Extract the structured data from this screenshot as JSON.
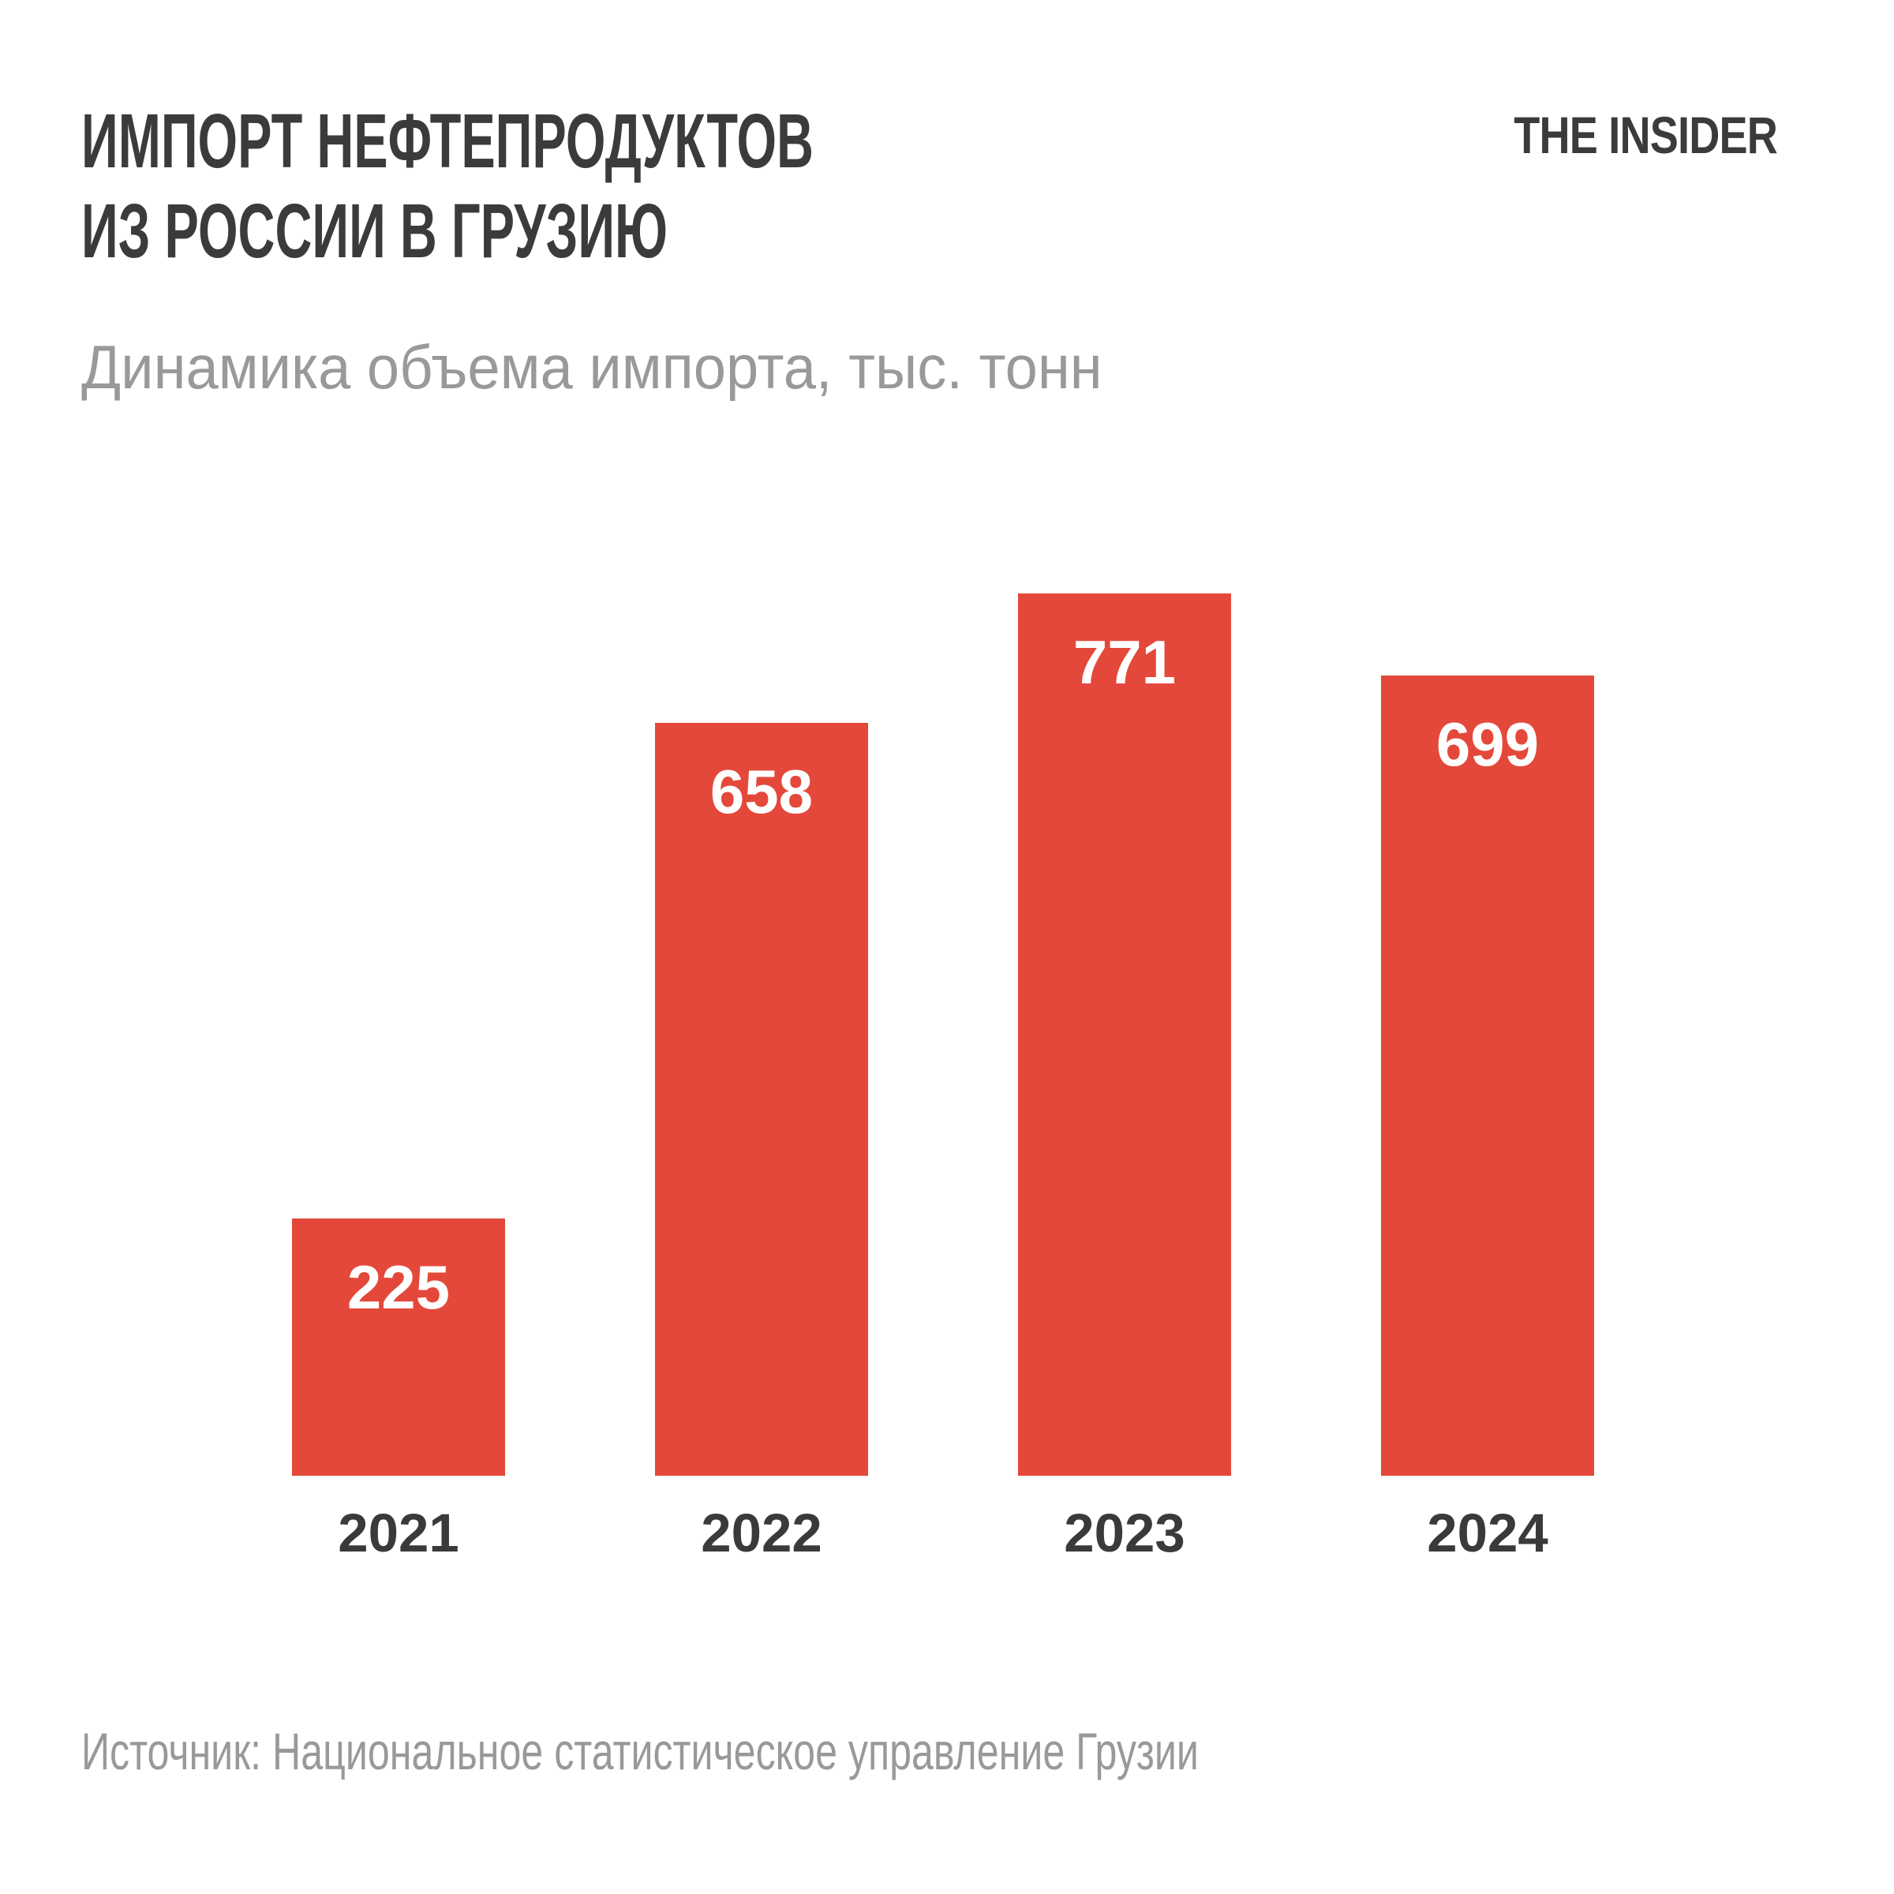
{
  "header": {
    "title_lines": [
      "ИМПОРТ НЕФТЕПРОДУКТОВ",
      "ИЗ РОССИИ В ГРУЗИЮ"
    ],
    "logo": "THE INSIDER"
  },
  "subtitle": "Динамика объема импорта, тыс. тонн",
  "footer": {
    "source": "Источник: Национальное статистическое управление Грузии"
  },
  "colors": {
    "bar": "#e4483a",
    "title_text": "#3b3b3b",
    "muted_text": "#999999",
    "value_label_text": "#ffffff",
    "background": "#ffffff"
  },
  "chart_data": {
    "type": "bar",
    "title": "Импорт нефтепродуктов из России в Грузию",
    "subtitle": "Динамика объема импорта, тыс. тонн",
    "categories": [
      "2021",
      "2022",
      "2023",
      "2024"
    ],
    "values": [
      225,
      658,
      771,
      699
    ],
    "unit": "тыс. тонн",
    "ylim": [
      0,
      771
    ],
    "grid": false,
    "legend": false,
    "value_labels_position": "inside-top",
    "bar_color": "#e4483a",
    "source": "Источник: Национальное статистическое управление Грузии"
  }
}
